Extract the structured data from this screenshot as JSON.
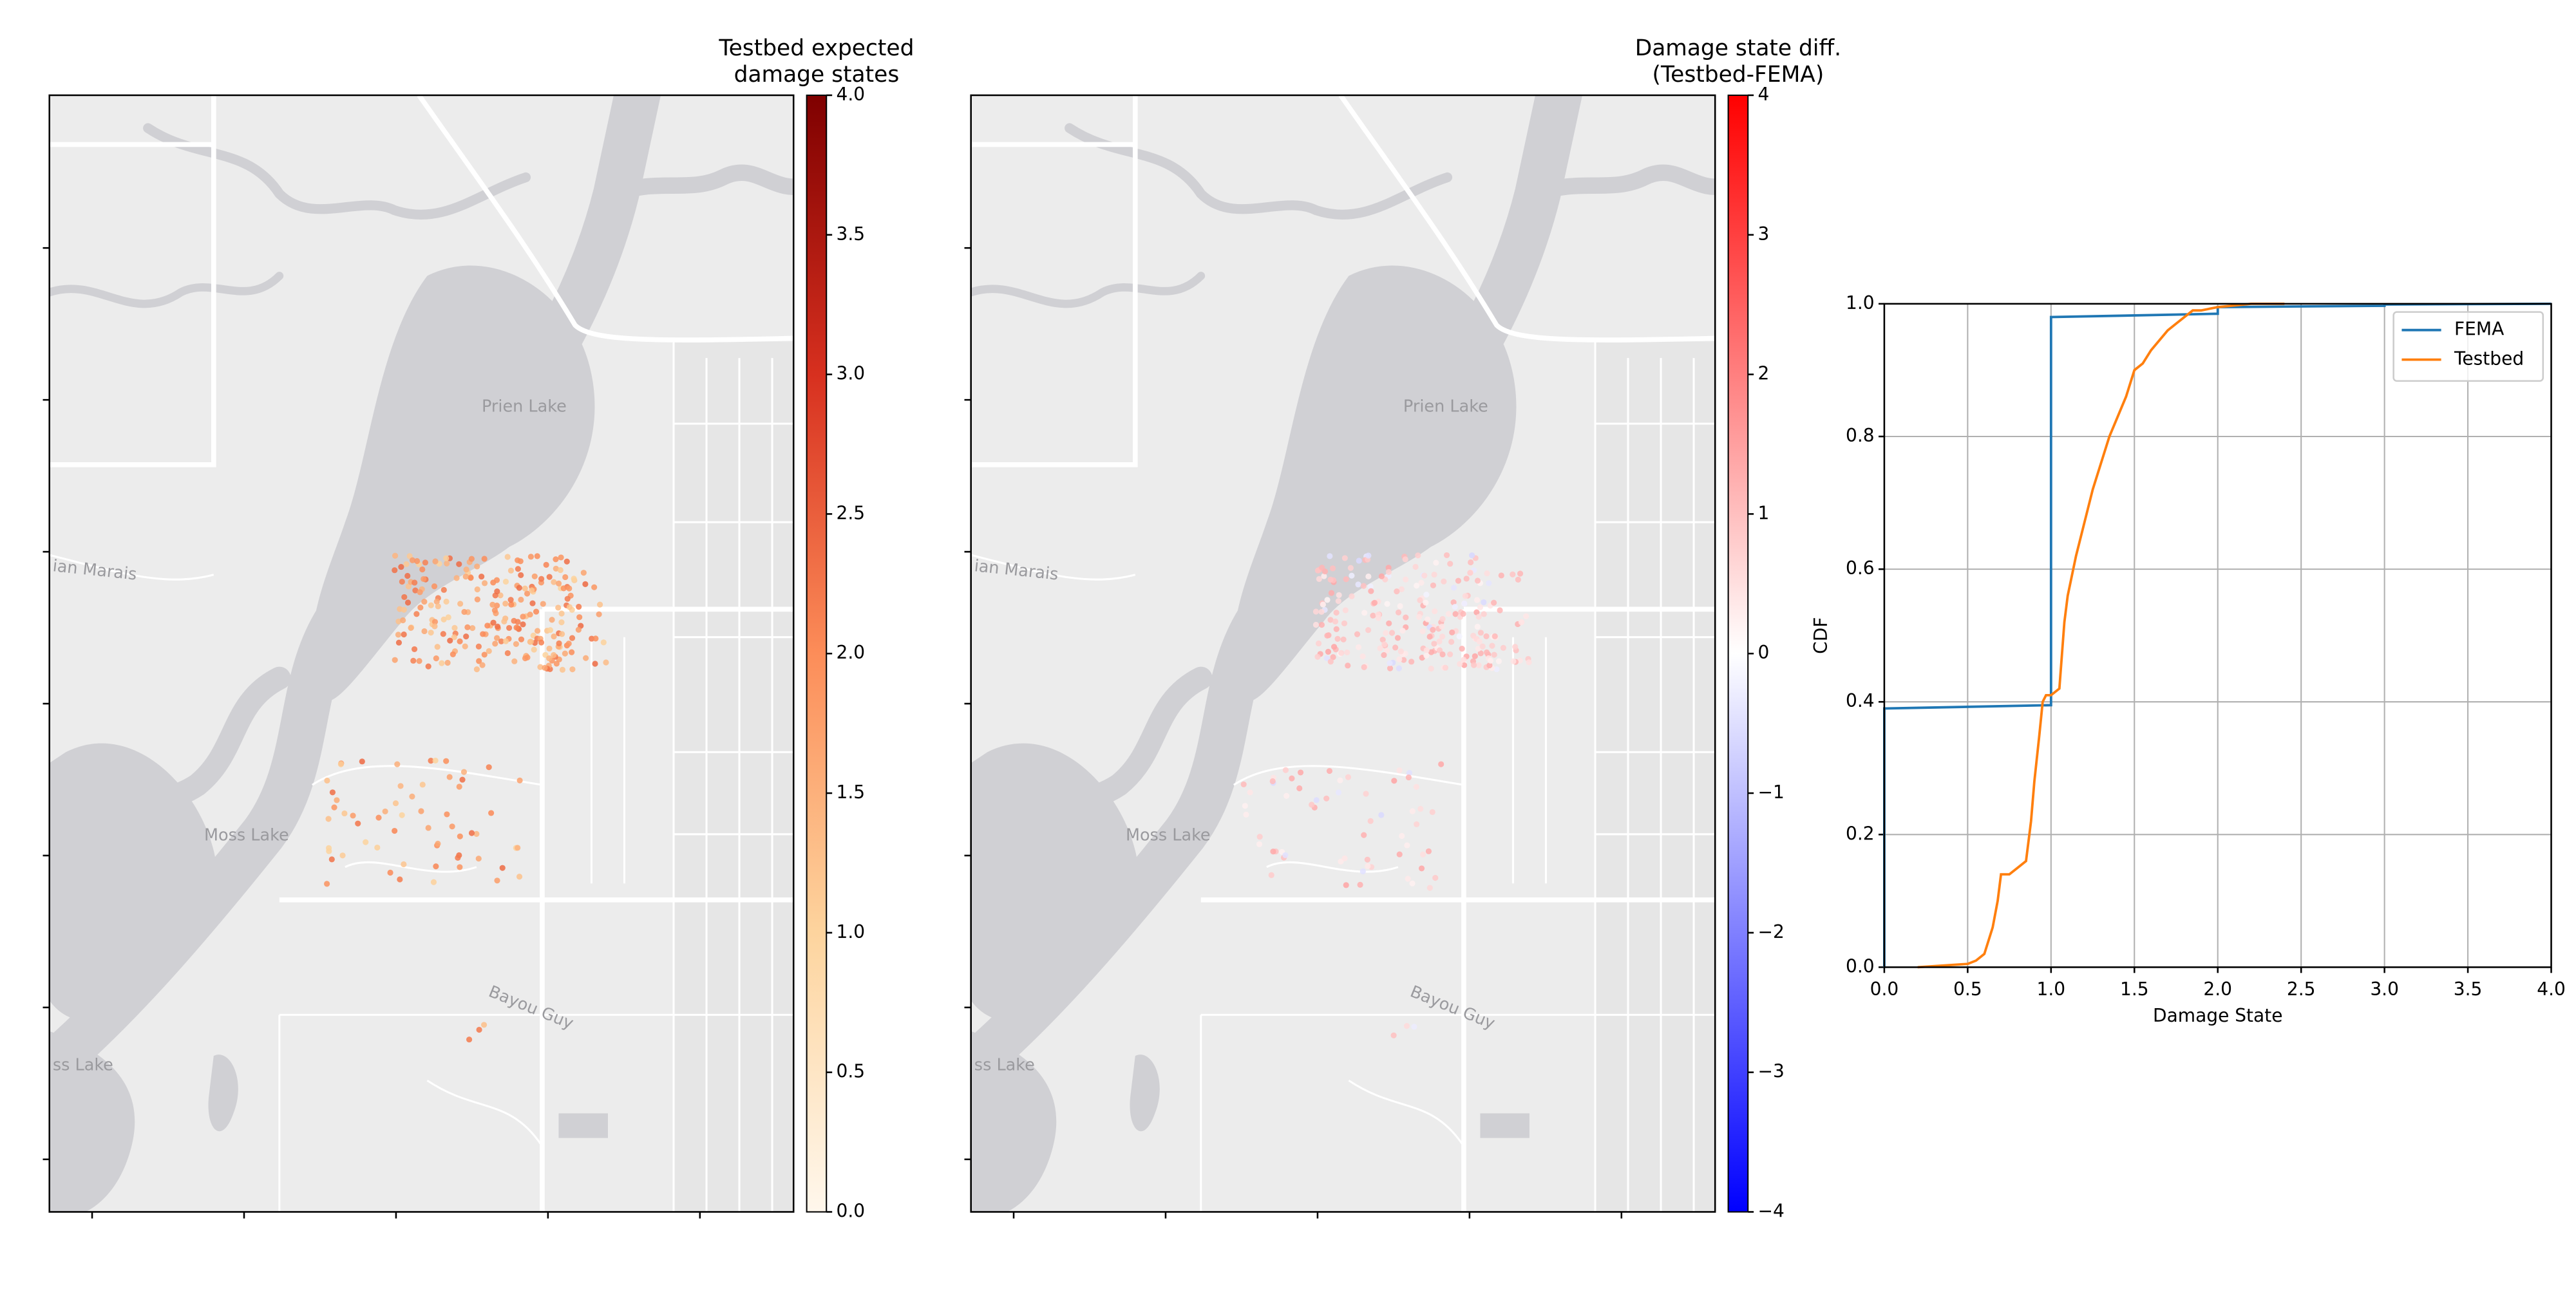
{
  "chart_data": [
    {
      "type": "map",
      "title": [
        "Testbed expected",
        "damage states"
      ],
      "labels": [
        "Prien Lake",
        "Moss Lake",
        "Bayou Guy",
        "ian Marais",
        "ss Lake"
      ],
      "colorbar": {
        "colors": [
          "#fff7ec",
          "#fdd49e",
          "#fc8d59",
          "#d7301f",
          "#7f0000"
        ],
        "lim": [
          0,
          4
        ],
        "ticks": [
          {
            "value": 0,
            "label": "0.0"
          },
          0.5,
          {
            "value": 1,
            "label": "1.0"
          },
          1.5,
          {
            "value": 2,
            "label": "2.0"
          },
          2.5,
          {
            "value": 3,
            "label": "3.0"
          },
          3.5,
          {
            "value": 4,
            "label": "4.0"
          }
        ]
      }
    },
    {
      "type": "map",
      "title": [
        "Damage state diff.",
        "(Testbed-FEMA)"
      ],
      "labels": [
        "Prien Lake",
        "Moss Lake",
        "Bayou Guy",
        "ian Marais",
        "ss Lake"
      ],
      "colorbar": {
        "colors": [
          "#0000ff",
          "#ffffff",
          "#ff0000"
        ],
        "lim": [
          -4,
          4
        ],
        "ticks": [
          {
            "value": -4,
            "label": "−4"
          },
          {
            "value": -3,
            "label": "−3"
          },
          {
            "value": -2,
            "label": "−2"
          },
          {
            "value": -1,
            "label": "−1"
          },
          0,
          1,
          2,
          3,
          4
        ]
      }
    },
    {
      "type": "line",
      "xlabel": "Damage State",
      "ylabel": "CDF",
      "xlim": [
        0,
        4
      ],
      "ylim": [
        0,
        1
      ],
      "xticks": [
        {
          "value": 0,
          "label": "0.0"
        },
        0.5,
        {
          "value": 1,
          "label": "1.0"
        },
        1.5,
        {
          "value": 2,
          "label": "2.0"
        },
        2.5,
        {
          "value": 3,
          "label": "3.0"
        },
        3.5,
        {
          "value": 4,
          "label": "4.0"
        }
      ],
      "yticks": [
        {
          "value": 0,
          "label": "0.0"
        },
        0.2,
        0.4,
        0.6,
        0.8,
        {
          "value": 1,
          "label": "1.0"
        }
      ],
      "grid": true,
      "legend": "upper right",
      "series": [
        {
          "name": "FEMA",
          "color": "#1f77b4",
          "x": [
            0,
            0,
            1,
            1,
            2,
            2,
            3,
            3,
            4
          ],
          "values": [
            0,
            0.39,
            0.395,
            0.98,
            0.985,
            0.995,
            0.997,
            0.999,
            1.0
          ]
        },
        {
          "name": "Testbed",
          "color": "#ff7f0e",
          "x": [
            0.2,
            0.5,
            0.55,
            0.6,
            0.65,
            0.68,
            0.7,
            0.75,
            0.8,
            0.85,
            0.88,
            0.9,
            0.93,
            0.95,
            0.97,
            1.0,
            1.05,
            1.08,
            1.1,
            1.15,
            1.2,
            1.25,
            1.3,
            1.35,
            1.4,
            1.45,
            1.5,
            1.55,
            1.6,
            1.7,
            1.75,
            1.8,
            1.85,
            1.9,
            2.0,
            2.2,
            2.4
          ],
          "values": [
            0,
            0.005,
            0.01,
            0.02,
            0.06,
            0.1,
            0.14,
            0.14,
            0.15,
            0.16,
            0.22,
            0.28,
            0.35,
            0.4,
            0.41,
            0.41,
            0.42,
            0.52,
            0.56,
            0.62,
            0.67,
            0.72,
            0.76,
            0.8,
            0.83,
            0.86,
            0.9,
            0.91,
            0.93,
            0.96,
            0.97,
            0.98,
            0.99,
            0.99,
            0.995,
            1.0,
            1.0
          ]
        }
      ]
    }
  ]
}
